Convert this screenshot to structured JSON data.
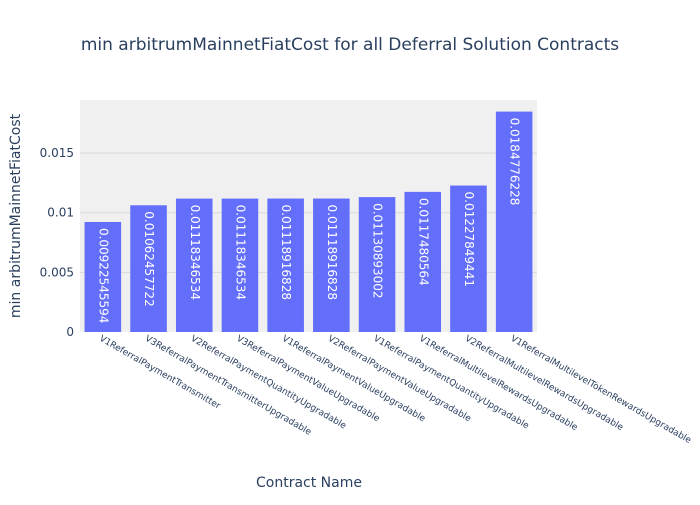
{
  "chart_data": {
    "type": "bar",
    "title": "min arbitrumMainnetFiatCost for all Deferral Solution Contracts",
    "xlabel": "Contract Name",
    "ylabel": "min arbitrumMainnetFiatCost",
    "categories": [
      "V1ReferralPaymentTransmitter",
      "V3ReferralPaymentTransmitterUpgradable",
      "V2ReferralPaymentQuantityUpgradable",
      "V3ReferralPaymentValueUpgradable",
      "V1ReferralPaymentValueUpgradable",
      "V2ReferralPaymentValueUpgradable",
      "V1ReferralPaymentQuantityUpgradable",
      "V1ReferralMultilevelRewardsUpgradable",
      "V2ReferralMultilevelRewardsUpgradable",
      "V1ReferralMultilevelTokenRewardsUpgradable"
    ],
    "values": [
      0.00922545594,
      0.01062457722,
      0.01118346534,
      0.01118346534,
      0.01118916828,
      0.01118916828,
      0.01130893002,
      0.0117480564,
      0.01227849441,
      0.0184776228
    ],
    "labels": [
      "0.00922545594",
      "0.01062457722",
      "0.01118346534",
      "0.01118346534",
      "0.01118916828",
      "0.01118916828",
      "0.01130893002",
      "0.0117480564",
      "0.01227849441",
      "0.0184776228"
    ],
    "yticks": [
      {
        "value": 0,
        "label": "0"
      },
      {
        "value": 0.005,
        "label": "0.005"
      },
      {
        "value": 0.01,
        "label": "0.01"
      },
      {
        "value": 0.015,
        "label": "0.015"
      }
    ],
    "ylim": [
      0,
      0.01945
    ],
    "grid": true,
    "colors": {
      "bar": "#636efa",
      "plot_bg": "#f0f0f0",
      "grid": "#d9d9d9",
      "text": "#2a3f5f"
    }
  }
}
